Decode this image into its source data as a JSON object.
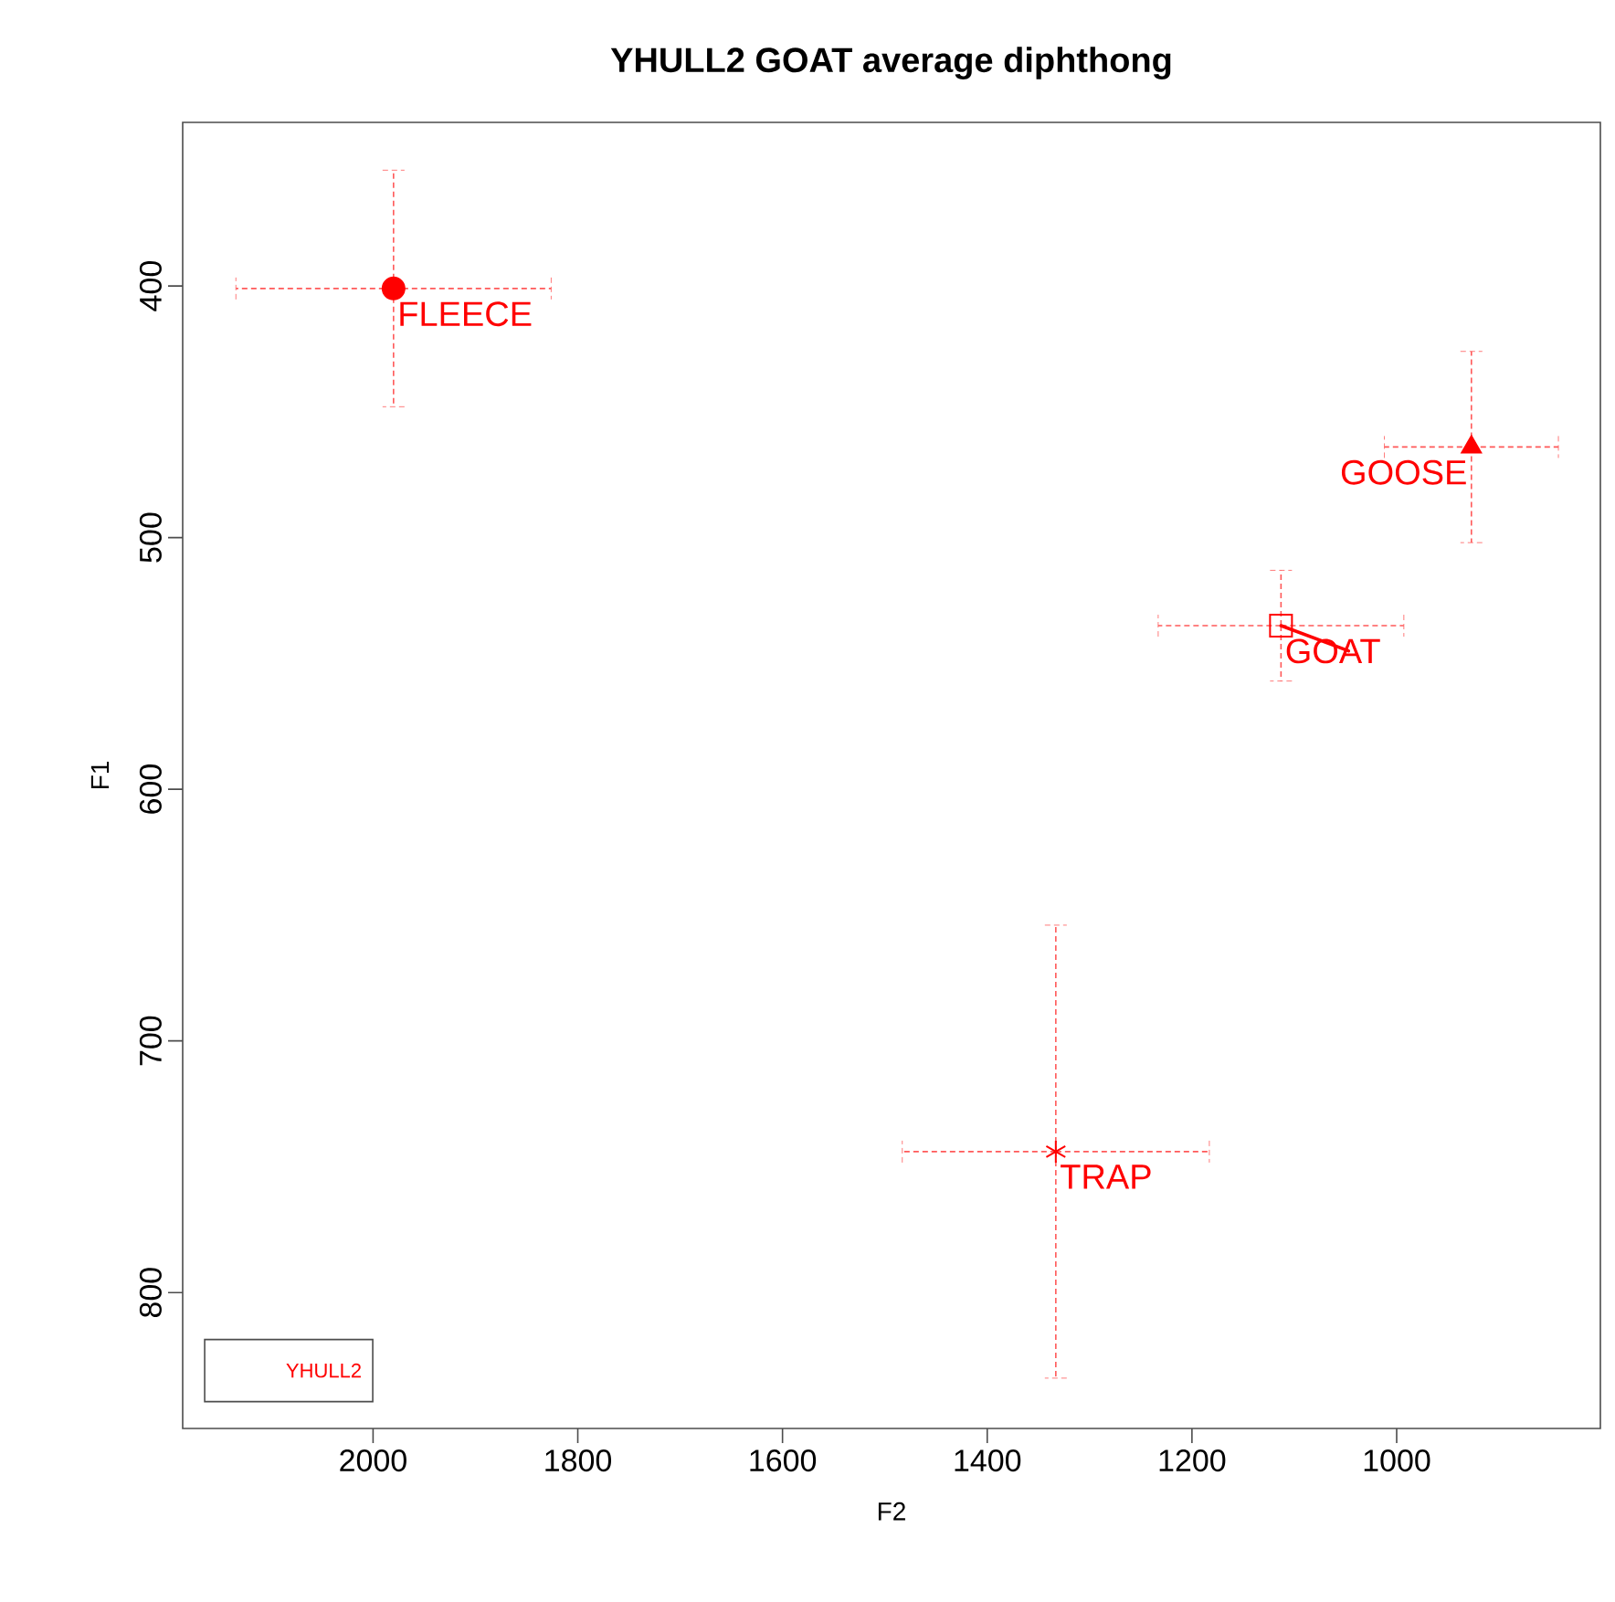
{
  "chart_data": {
    "type": "scatter",
    "title": "YHULL2 GOAT average diphthong",
    "xlabel": "F2",
    "ylabel": "F1",
    "xlim": [
      2186,
      801
    ],
    "ylim": [
      854,
      335
    ],
    "xticks": [
      1000,
      1200,
      1400,
      1600,
      1800,
      2000
    ],
    "yticks": [
      400,
      500,
      600,
      700,
      800
    ],
    "grid": false,
    "legend_title": "YHULL2",
    "series": [
      {
        "name": "FLEECE",
        "color": "#ff0000",
        "marker": "circle",
        "x": [
          1980
        ],
        "values": [
          401
        ],
        "errors": [
          47
        ],
        "xerrors": [
          154
        ]
      },
      {
        "name": "GOOSE",
        "color": "#ff0000",
        "marker": "triangle",
        "x": [
          927
        ],
        "values": [
          464
        ],
        "errors": [
          38
        ],
        "xerrors": [
          85
        ]
      },
      {
        "name": "GOAT",
        "color": "#ff0000",
        "marker": "square",
        "x": [
          1113
        ],
        "values": [
          535
        ],
        "errors": [
          22
        ],
        "xerrors": [
          120
        ]
      },
      {
        "name": "TRAP",
        "color": "#ff0000",
        "marker": "cross",
        "x": [
          1333
        ],
        "values": [
          744
        ],
        "errors": [
          90
        ],
        "xerrors": [
          150
        ]
      },
      {
        "type": "line",
        "color": "#ff0000",
        "marker": "none",
        "line_style": "solid",
        "x": [
          1113,
          1047
        ],
        "values": [
          535,
          545
        ]
      }
    ]
  }
}
